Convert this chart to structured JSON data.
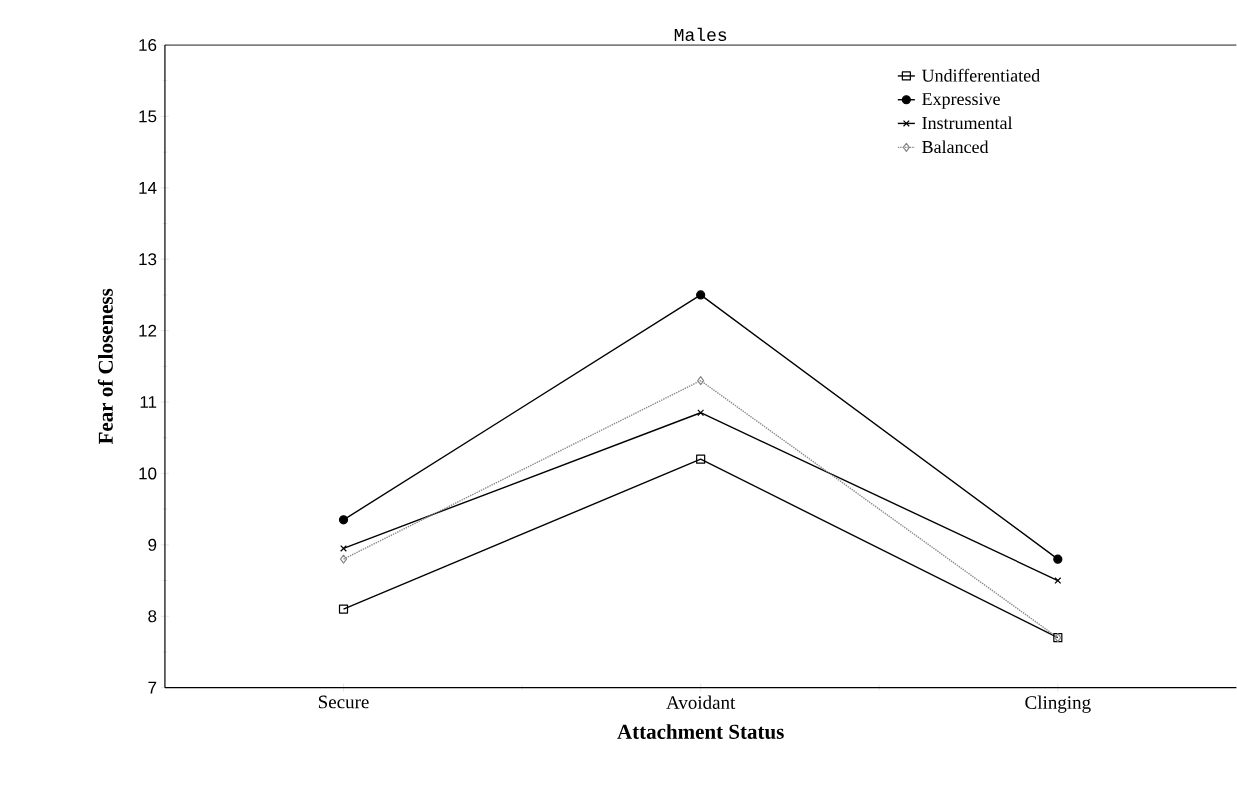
{
  "chart_data": {
    "type": "line",
    "title": "Males",
    "xlabel": "Attachment Status",
    "ylabel": "Fear of Closeness",
    "categories": [
      "Secure",
      "Avoidant",
      "Clinging"
    ],
    "series": [
      {
        "name": "Undifferentiated",
        "color": "#000000",
        "marker": "square",
        "line_style": "solid",
        "values": [
          8.1,
          10.2,
          7.7
        ]
      },
      {
        "name": "Expressive",
        "color": "#000000",
        "marker": "circle",
        "line_style": "solid",
        "values": [
          9.35,
          12.5,
          8.8
        ]
      },
      {
        "name": "Instrumental",
        "color": "#000000",
        "marker": "cross",
        "line_style": "solid",
        "values": [
          8.95,
          10.85,
          8.5
        ]
      },
      {
        "name": "Balanced",
        "color": "#888888",
        "marker": "diamond",
        "line_style": "dotted",
        "values": [
          8.8,
          11.3,
          7.7
        ]
      }
    ],
    "ylim": [
      7,
      16
    ],
    "yticks": [
      7,
      8,
      9,
      10,
      11,
      12,
      13,
      14,
      15,
      16
    ],
    "grid": false,
    "legend": "top right"
  }
}
